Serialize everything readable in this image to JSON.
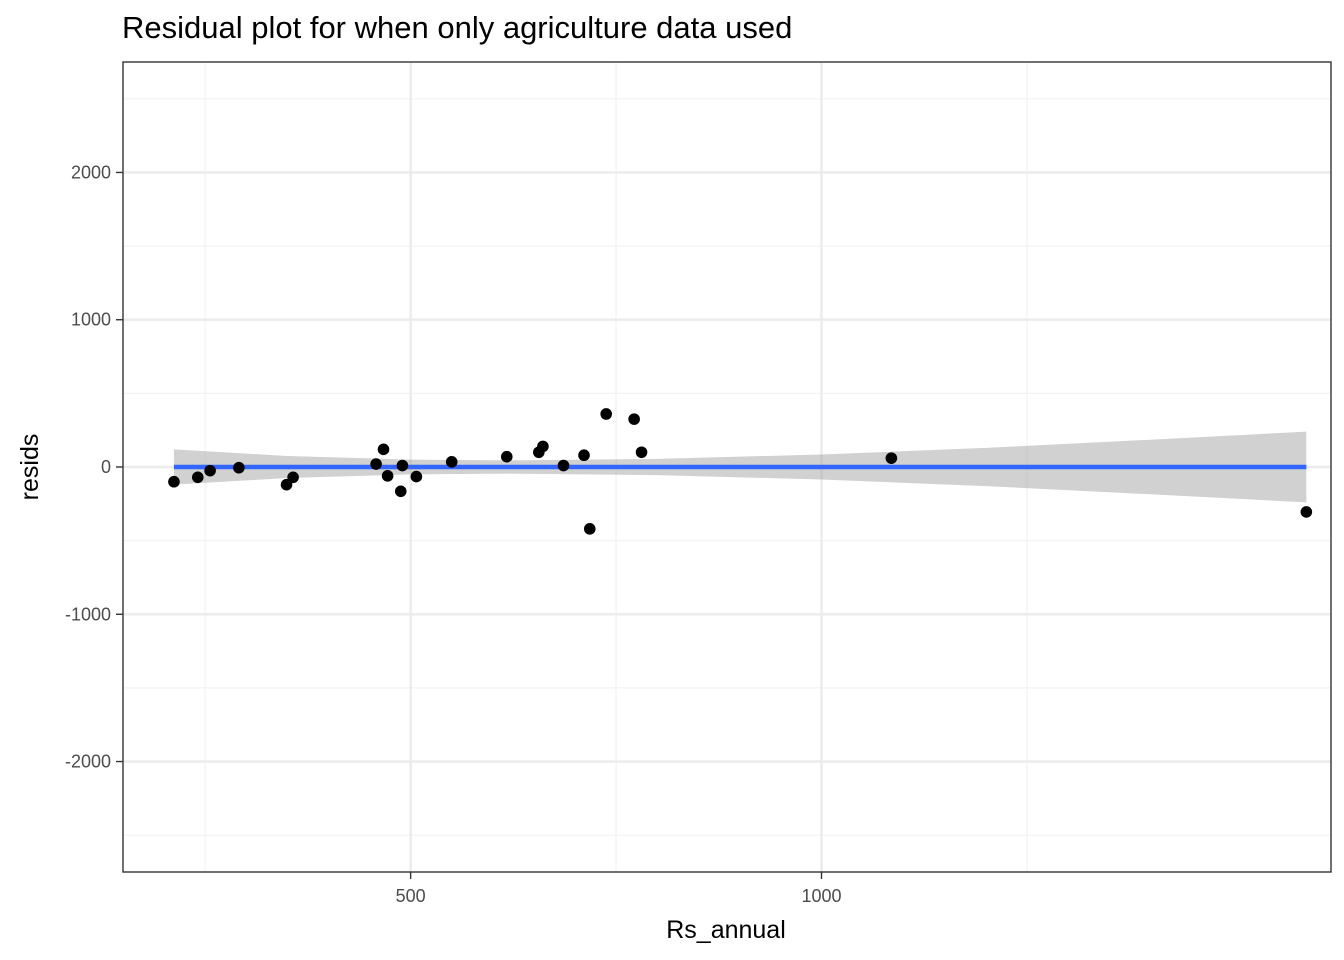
{
  "chart_data": {
    "type": "scatter",
    "title": "Residual plot for when only agriculture data used",
    "xlabel": "Rs_annual",
    "ylabel": "resids",
    "xlim": [
      150,
      1620
    ],
    "ylim": [
      -2750,
      2750
    ],
    "x_ticks": [
      500,
      1000
    ],
    "x_ticks_minor": [
      250,
      750,
      1250
    ],
    "y_ticks": [
      -2000,
      -1000,
      0,
      1000,
      2000
    ],
    "y_ticks_minor": [
      -2500,
      -1500,
      -500,
      500,
      1500,
      2500
    ],
    "grid": true,
    "legend": "none",
    "points": [
      {
        "x": 212,
        "y": -100
      },
      {
        "x": 241,
        "y": -70
      },
      {
        "x": 256,
        "y": -25
      },
      {
        "x": 291,
        "y": -5
      },
      {
        "x": 349,
        "y": -120
      },
      {
        "x": 357,
        "y": -70
      },
      {
        "x": 458,
        "y": 20
      },
      {
        "x": 467,
        "y": 120
      },
      {
        "x": 472,
        "y": -60
      },
      {
        "x": 488,
        "y": -165
      },
      {
        "x": 490,
        "y": 10
      },
      {
        "x": 507,
        "y": -65
      },
      {
        "x": 550,
        "y": 35
      },
      {
        "x": 617,
        "y": 70
      },
      {
        "x": 656,
        "y": 100
      },
      {
        "x": 661,
        "y": 140
      },
      {
        "x": 686,
        "y": 10
      },
      {
        "x": 711,
        "y": 80
      },
      {
        "x": 718,
        "y": -420
      },
      {
        "x": 738,
        "y": 360
      },
      {
        "x": 772,
        "y": 325
      },
      {
        "x": 781,
        "y": 100
      },
      {
        "x": 1085,
        "y": 60
      },
      {
        "x": 1590,
        "y": -305
      }
    ],
    "fit_line": {
      "x": [
        212,
        1590
      ],
      "y": [
        0,
        0
      ]
    },
    "confidence_band": {
      "x": [
        212,
        350,
        500,
        620,
        800,
        1000,
        1200,
        1400,
        1590
      ],
      "upper": [
        120,
        75,
        50,
        45,
        55,
        85,
        130,
        185,
        240
      ],
      "lower": [
        -120,
        -75,
        -50,
        -45,
        -55,
        -85,
        -130,
        -185,
        -240
      ]
    },
    "colors": {
      "points": "#000000",
      "fit_line": "#3366ff",
      "band": "#999999",
      "panel_border": "#333333",
      "grid_major": "#ebebeb",
      "grid_minor": "#f2f2f2",
      "tick_label": "#4d4d4d"
    }
  }
}
